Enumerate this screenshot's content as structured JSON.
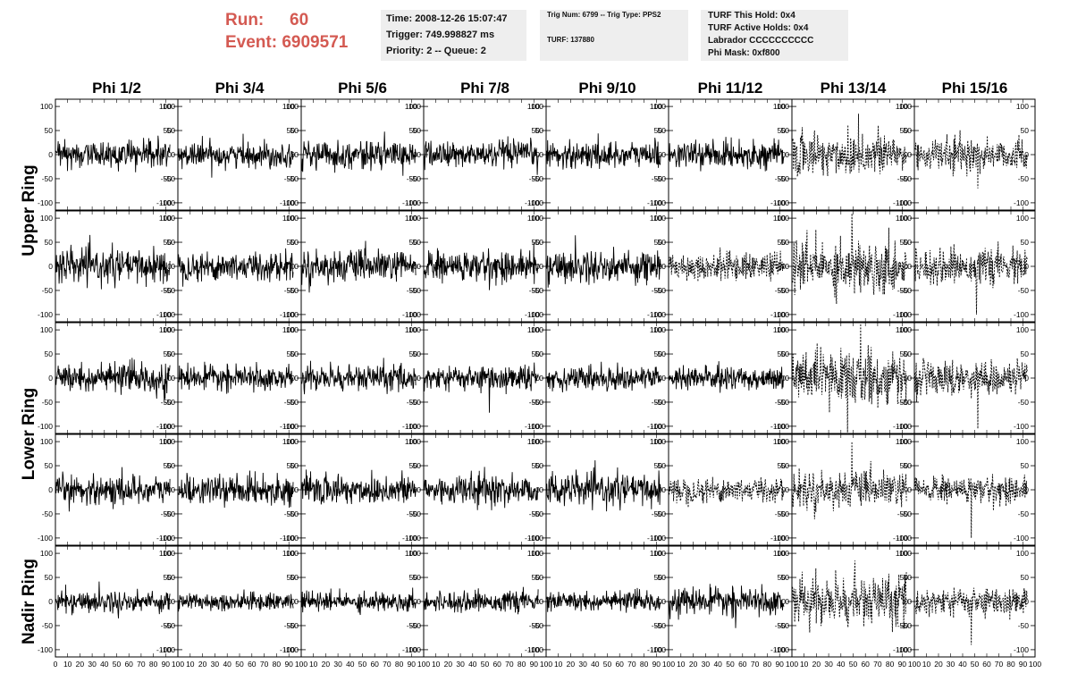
{
  "header": {
    "run_label": "Run:",
    "run_value": "60",
    "event_label": "Event:",
    "event_value": "6909571",
    "time": "Time: 2008-12-26 15:07:47",
    "trigger": "Trigger: 749.998827 ms",
    "priority": "Priority: 2 -- Queue: 2",
    "trig_num": "Trig Num: 6799 -- Trig Type: PPS2",
    "turf": "TURF: 137880",
    "turf_hold": "TURF This Hold: 0x4",
    "turf_active": "TURF Active Holds: 0x4",
    "labrador": "Labrador CCCCCCCCCC",
    "phi_mask": "Phi Mask: 0xf800"
  },
  "chart_data": {
    "type": "line",
    "columns": [
      "Phi 1/2",
      "Phi 3/4",
      "Phi 5/6",
      "Phi 7/8",
      "Phi 9/10",
      "Phi 11/12",
      "Phi 13/14",
      "Phi 15/16"
    ],
    "rows": [
      {
        "label": "Upper Ring",
        "panels": 2
      },
      {
        "label": "Lower Ring",
        "panels": 2
      },
      {
        "label": "Nadir Ring",
        "panels": 1
      }
    ],
    "ylim": [
      -115,
      115
    ],
    "yticks": [
      100,
      50,
      0,
      -50,
      -100
    ],
    "xlim": [
      0,
      100
    ],
    "xticks": [
      0,
      10,
      20,
      30,
      40,
      50,
      60,
      70,
      80,
      90,
      100
    ],
    "samples": 260,
    "trace_style": {
      "solid_color": "#000000",
      "masked_dash": "2,1.5"
    },
    "amplitude": [
      [
        14,
        13,
        14,
        14,
        14,
        13,
        24,
        17
      ],
      [
        17,
        15,
        16,
        16,
        17,
        14,
        28,
        17
      ],
      [
        15,
        12,
        13,
        13,
        12,
        12,
        27,
        17
      ],
      [
        15,
        14,
        16,
        16,
        16,
        13,
        18,
        14
      ],
      [
        11,
        9,
        10,
        10,
        10,
        13,
        25,
        15
      ]
    ],
    "masked": [
      [
        false,
        false,
        false,
        false,
        false,
        false,
        true,
        true
      ],
      [
        false,
        false,
        false,
        false,
        false,
        true,
        true,
        true
      ],
      [
        false,
        false,
        false,
        false,
        false,
        false,
        true,
        true
      ],
      [
        false,
        false,
        false,
        false,
        false,
        true,
        true,
        true
      ],
      [
        false,
        false,
        false,
        false,
        false,
        false,
        true,
        true
      ]
    ],
    "spikes": [
      [
        {
          "x": 97,
          "y": -25
        },
        {
          "x": 36,
          "y": -18
        },
        {
          "x": 30,
          "y": -20
        },
        {
          "x": 40,
          "y": -18
        },
        {
          "x": 55,
          "y": -22
        },
        {
          "x": 60,
          "y": -18
        },
        {
          "x": 58,
          "y": 85
        },
        {
          "x": 56,
          "y": -70
        },
        {
          "x": 10,
          "y": -70
        },
        {
          "x": 60,
          "y": 55
        },
        {
          "x": 54,
          "y": -85
        }
      ],
      [
        {
          "x": 5,
          "y": -35
        },
        {
          "x": 30,
          "y": -22
        },
        {
          "x": 55,
          "y": -25
        },
        {
          "x": 40,
          "y": -20
        },
        {
          "x": 60,
          "y": -22
        },
        {
          "x": 45,
          "y": -30
        },
        {
          "x": 52,
          "y": 110
        },
        {
          "x": 55,
          "y": -100
        },
        {
          "x": 90,
          "y": -35
        },
        {
          "x": 70,
          "y": -35
        }
      ],
      [
        {
          "x": 95,
          "y": -45
        },
        {
          "x": 8,
          "y": 32
        },
        {
          "x": 72,
          "y": 42
        },
        {
          "x": 57,
          "y": -72
        },
        {
          "x": 40,
          "y": -25
        },
        {
          "x": 50,
          "y": -22
        },
        {
          "x": 60,
          "y": 115
        },
        {
          "x": 56,
          "y": -105
        },
        {
          "x": 70,
          "y": -60
        },
        {
          "x": 55,
          "y": -60
        }
      ],
      [
        {
          "x": 50,
          "y": -40
        },
        {
          "x": 30,
          "y": -22
        },
        {
          "x": 60,
          "y": -25
        },
        {
          "x": 40,
          "y": -20
        },
        {
          "x": 55,
          "y": -25
        },
        {
          "x": 15,
          "y": -30
        },
        {
          "x": 52,
          "y": 100
        },
        {
          "x": 50,
          "y": -100
        },
        {
          "x": 40,
          "y": -75
        },
        {
          "x": 50,
          "y": -45
        }
      ],
      [
        {
          "x": 55,
          "y": -35
        },
        {
          "x": 40,
          "y": -20
        },
        {
          "x": 25,
          "y": -18
        },
        {
          "x": 10,
          "y": -20
        },
        {
          "x": 30,
          "y": -20
        },
        {
          "x": 58,
          "y": -55
        },
        {
          "x": 55,
          "y": 85
        },
        {
          "x": 50,
          "y": -90
        },
        {
          "x": 53,
          "y": 75
        },
        {
          "x": 55,
          "y": -90
        }
      ]
    ]
  }
}
